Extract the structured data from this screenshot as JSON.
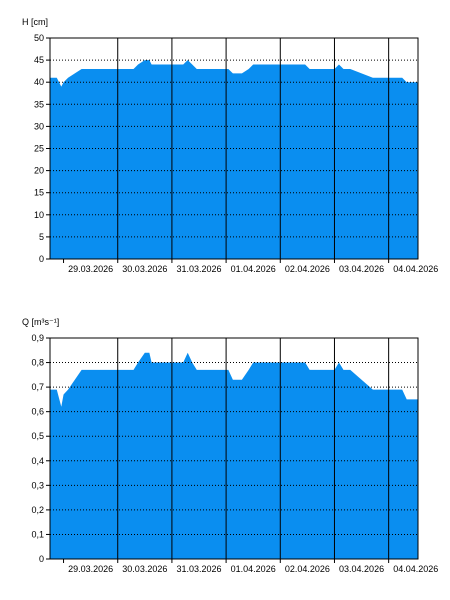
{
  "colors": {
    "fill": "#0a8ef0",
    "day_line": "#000000",
    "grid": "#000000",
    "frame": "#000000",
    "background": "#ffffff"
  },
  "chart_data": [
    {
      "type": "area",
      "ylabel": "H [cm]",
      "ylim": [
        0,
        50
      ],
      "yticks": [
        0,
        5,
        10,
        15,
        20,
        25,
        30,
        35,
        40,
        45,
        50
      ],
      "x_unit": "days",
      "xlim": [
        "28.03.2026 18:00",
        "04.04.2026 13:00"
      ],
      "x_tick_labels": [
        "29.03.2026",
        "30.03.2026",
        "31.03.2026",
        "01.04.2026",
        "02.04.2026",
        "03.04.2026",
        "04.04.2026"
      ],
      "day_lines": [
        "30.03.2026",
        "31.03.2026",
        "01.04.2026",
        "02.04.2026",
        "03.04.2026",
        "04.04.2026"
      ],
      "grid": "horizontal dotted",
      "series": [
        {
          "x": [
            "28.03.2026 18:00",
            "28.03.2026 21:00",
            "28.03.2026 23:00",
            "29.03.2026 00:00",
            "29.03.2026 02:00",
            "29.03.2026 05:00",
            "29.03.2026 08:00",
            "29.03.2026 10:00",
            "30.03.2026 07:00",
            "30.03.2026 09:00",
            "30.03.2026 12:00",
            "30.03.2026 14:00",
            "30.03.2026 15:00",
            "30.03.2026 17:00",
            "31.03.2026 05:00",
            "31.03.2026 07:00",
            "31.03.2026 09:00",
            "31.03.2026 11:00",
            "01.04.2026 01:00",
            "01.04.2026 03:00",
            "01.04.2026 07:00",
            "01.04.2026 10:00",
            "01.04.2026 12:00",
            "02.04.2026 00:00",
            "02.04.2026 11:00",
            "02.04.2026 13:00",
            "02.04.2026 15:00",
            "03.04.2026 00:00",
            "03.04.2026 02:00",
            "03.04.2026 04:00",
            "03.04.2026 07:00",
            "03.04.2026 12:00",
            "03.04.2026 17:00",
            "04.04.2026 06:00",
            "04.04.2026 08:00",
            "04.04.2026 13:00"
          ],
          "y": [
            41,
            41,
            39,
            40,
            41,
            42,
            43,
            43,
            43,
            44,
            45,
            45,
            44,
            44,
            44,
            45,
            44,
            43,
            43,
            42,
            42,
            43,
            44,
            44,
            44,
            43,
            43,
            43,
            44,
            43,
            43,
            42,
            41,
            41,
            40,
            40
          ]
        }
      ]
    },
    {
      "type": "area",
      "ylabel": "Q [m³s⁻¹]",
      "ylim": [
        0,
        0.9
      ],
      "yticks": [
        "0",
        "0,1",
        "0,2",
        "0,3",
        "0,4",
        "0,5",
        "0,6",
        "0,7",
        "0,8",
        "0,9"
      ],
      "x_unit": "days",
      "xlim": [
        "28.03.2026 18:00",
        "04.04.2026 13:00"
      ],
      "x_tick_labels": [
        "29.03.2026",
        "30.03.2026",
        "31.03.2026",
        "01.04.2026",
        "02.04.2026",
        "03.04.2026",
        "04.04.2026"
      ],
      "day_lines": [
        "30.03.2026",
        "31.03.2026",
        "01.04.2026",
        "02.04.2026",
        "03.04.2026",
        "04.04.2026"
      ],
      "grid": "horizontal dotted",
      "series": [
        {
          "x": [
            "28.03.2026 18:00",
            "28.03.2026 21:00",
            "28.03.2026 23:00",
            "29.03.2026 00:00",
            "29.03.2026 02:00",
            "29.03.2026 05:00",
            "29.03.2026 08:00",
            "29.03.2026 10:00",
            "30.03.2026 07:00",
            "30.03.2026 09:00",
            "30.03.2026 12:00",
            "30.03.2026 14:00",
            "30.03.2026 15:00",
            "30.03.2026 17:00",
            "31.03.2026 05:00",
            "31.03.2026 07:00",
            "31.03.2026 09:00",
            "31.03.2026 11:00",
            "01.04.2026 01:00",
            "01.04.2026 03:00",
            "01.04.2026 07:00",
            "01.04.2026 10:00",
            "01.04.2026 12:00",
            "02.04.2026 00:00",
            "02.04.2026 11:00",
            "02.04.2026 13:00",
            "02.04.2026 15:00",
            "03.04.2026 00:00",
            "03.04.2026 02:00",
            "03.04.2026 04:00",
            "03.04.2026 07:00",
            "03.04.2026 12:00",
            "03.04.2026 17:00",
            "04.04.2026 06:00",
            "04.04.2026 08:00",
            "04.04.2026 13:00"
          ],
          "y": [
            0.69,
            0.69,
            0.62,
            0.67,
            0.69,
            0.73,
            0.77,
            0.77,
            0.77,
            0.8,
            0.84,
            0.84,
            0.8,
            0.8,
            0.8,
            0.84,
            0.8,
            0.77,
            0.77,
            0.73,
            0.73,
            0.77,
            0.8,
            0.8,
            0.8,
            0.77,
            0.77,
            0.77,
            0.8,
            0.77,
            0.77,
            0.73,
            0.69,
            0.69,
            0.65,
            0.65
          ]
        }
      ]
    }
  ]
}
